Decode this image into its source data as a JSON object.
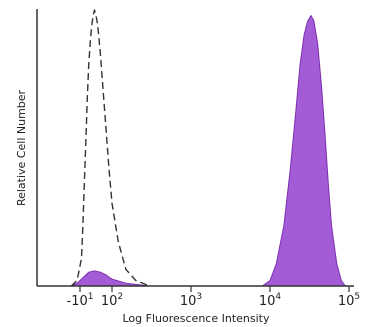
{
  "chart_data": {
    "type": "area",
    "title": "",
    "xlabel": "Log Fluorescence Intensity",
    "ylabel": "Relative Cell Number",
    "x_scale": "biexponential",
    "x_ticks": [
      {
        "value": -10,
        "base": "-10",
        "exp": "1"
      },
      {
        "value": 100,
        "base": "10",
        "exp": "2"
      },
      {
        "value": 1000,
        "base": "10",
        "exp": "3"
      },
      {
        "value": 10000,
        "base": "10",
        "exp": "4"
      },
      {
        "value": 100000,
        "base": "10",
        "exp": "5"
      }
    ],
    "ylim": [
      0,
      100
    ],
    "grid": false,
    "series": [
      {
        "style": "dashed-outline",
        "color": "#333333",
        "points": [
          [
            -40,
            0
          ],
          [
            -20,
            2
          ],
          [
            -5,
            10
          ],
          [
            0,
            22
          ],
          [
            5,
            38
          ],
          [
            10,
            52
          ],
          [
            15,
            68
          ],
          [
            20,
            80
          ],
          [
            25,
            88
          ],
          [
            30,
            94
          ],
          [
            35,
            98
          ],
          [
            40,
            100
          ],
          [
            45,
            98
          ],
          [
            50,
            95
          ],
          [
            55,
            90
          ],
          [
            60,
            84
          ],
          [
            70,
            70
          ],
          [
            80,
            56
          ],
          [
            90,
            42
          ],
          [
            100,
            30
          ],
          [
            120,
            16
          ],
          [
            150,
            6
          ],
          [
            200,
            2
          ],
          [
            300,
            0
          ]
        ]
      },
      {
        "style": "filled",
        "color": "#a45cd6",
        "points": [
          [
            -40,
            0
          ],
          [
            -20,
            1
          ],
          [
            0,
            3
          ],
          [
            20,
            5
          ],
          [
            40,
            5.5
          ],
          [
            60,
            5
          ],
          [
            80,
            4
          ],
          [
            100,
            2.5
          ],
          [
            150,
            1
          ],
          [
            300,
            0
          ],
          [
            8000,
            0
          ],
          [
            10000,
            2
          ],
          [
            12000,
            8
          ],
          [
            15000,
            22
          ],
          [
            18000,
            42
          ],
          [
            21000,
            62
          ],
          [
            24000,
            80
          ],
          [
            27000,
            91
          ],
          [
            30000,
            96
          ],
          [
            33000,
            98
          ],
          [
            36000,
            96
          ],
          [
            40000,
            88
          ],
          [
            45000,
            72
          ],
          [
            50000,
            54
          ],
          [
            55000,
            36
          ],
          [
            60000,
            22
          ],
          [
            70000,
            8
          ],
          [
            80000,
            2
          ],
          [
            90000,
            0
          ]
        ]
      }
    ]
  }
}
